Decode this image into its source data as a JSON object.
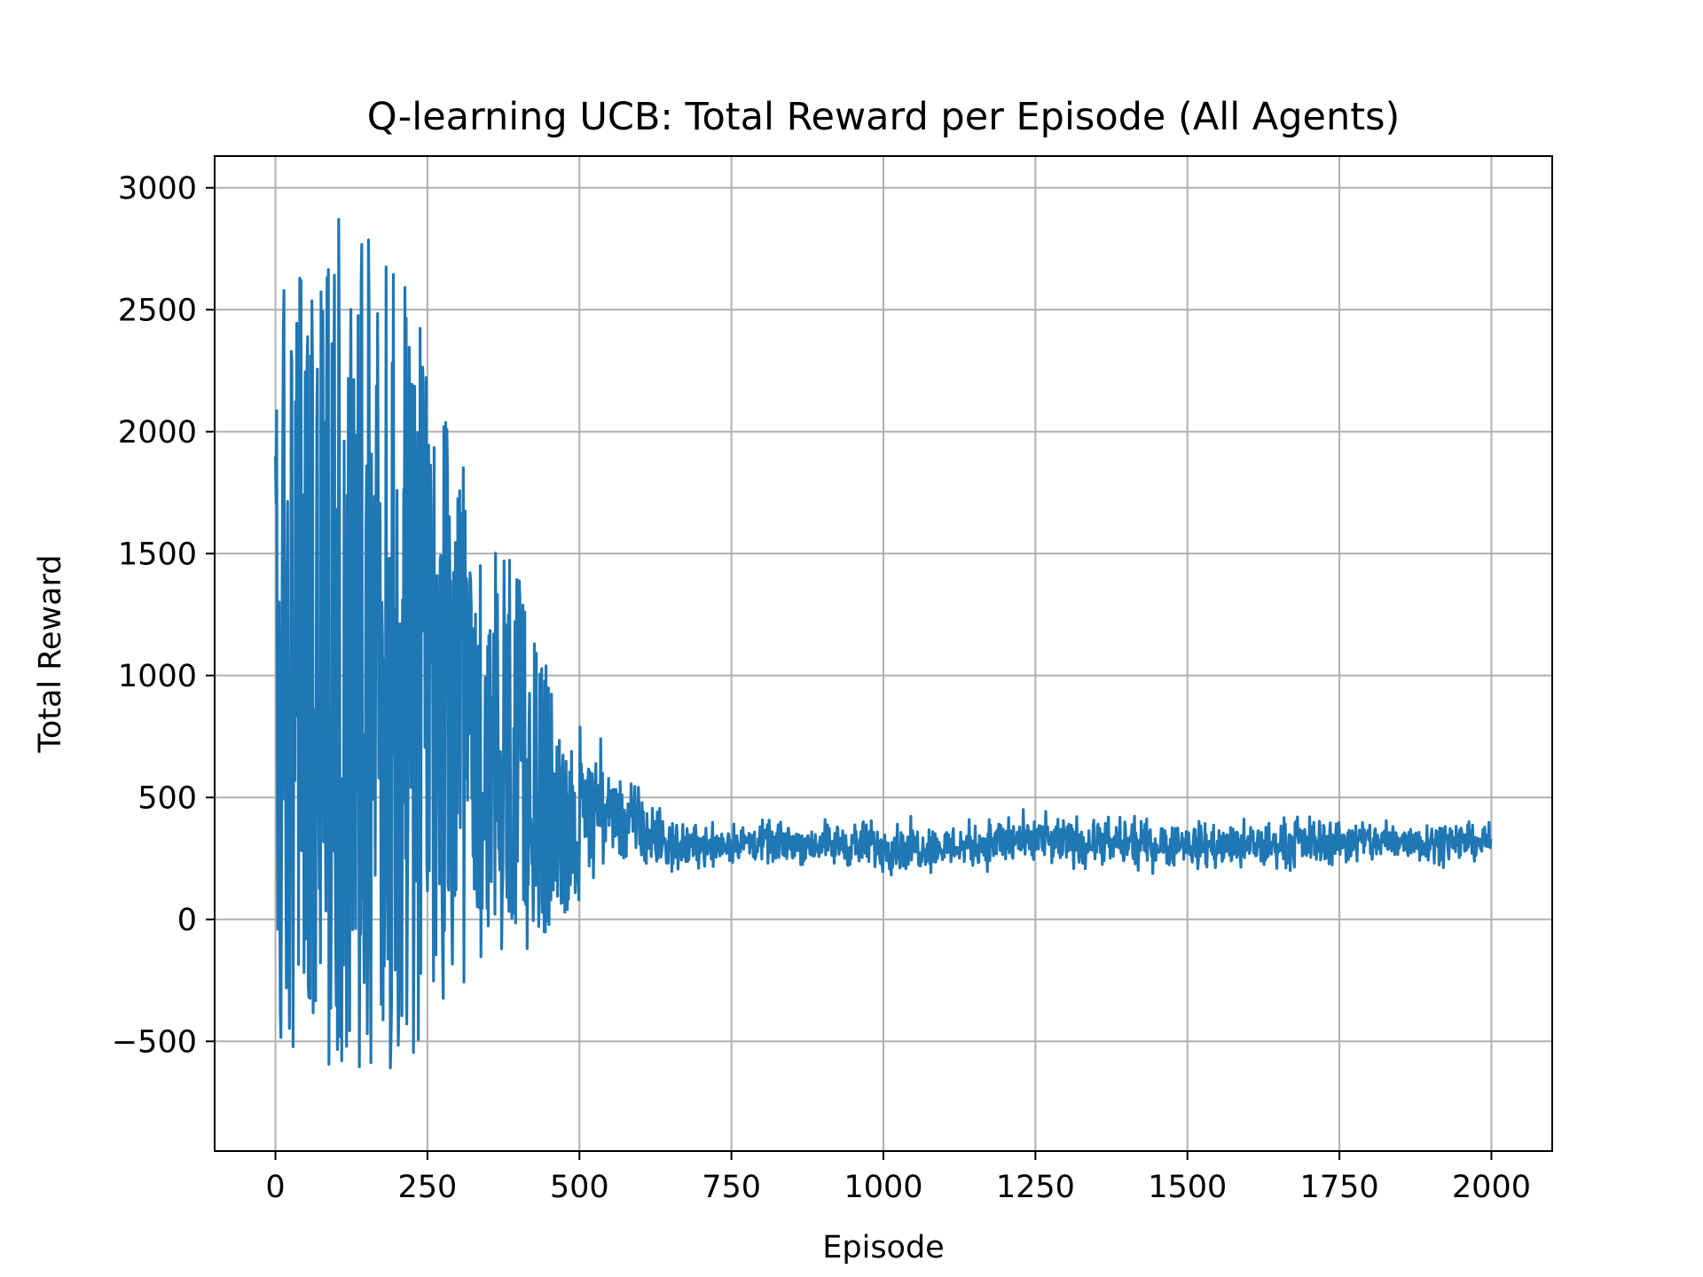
{
  "chart_data": {
    "type": "line",
    "title": "Q-learning UCB: Total Reward per Episode (All Agents)",
    "xlabel": "Episode",
    "ylabel": "Total Reward",
    "xlim": [
      -100,
      2100
    ],
    "ylim": [
      -950,
      3130
    ],
    "xticks": [
      0,
      250,
      500,
      750,
      1000,
      1250,
      1500,
      1750,
      2000
    ],
    "yticks": [
      -500,
      0,
      500,
      1000,
      1500,
      2000,
      2500,
      3000
    ],
    "xtick_labels": [
      "0",
      "250",
      "500",
      "750",
      "1000",
      "1250",
      "1500",
      "1750",
      "2000"
    ],
    "ytick_labels": [
      "−500",
      "0",
      "500",
      "1000",
      "1500",
      "2000",
      "2500",
      "3000"
    ],
    "grid": true,
    "line_color": "#1f77b4",
    "series": [
      {
        "episodes": 2000,
        "envelope_x": [
          0,
          25,
          50,
          75,
          100,
          125,
          150,
          175,
          200,
          225,
          250,
          275,
          300,
          325,
          350,
          375,
          400,
          425,
          450,
          475,
          500,
          525,
          550,
          575,
          600,
          650,
          700,
          800,
          900,
          1000,
          1100,
          1200,
          1300,
          1400,
          1500,
          1600,
          1700,
          1800,
          1900,
          2000
        ],
        "envelope_upper": [
          2600,
          2650,
          2700,
          2750,
          2950,
          2750,
          2800,
          2850,
          2600,
          2800,
          2300,
          2100,
          2000,
          1600,
          1500,
          1550,
          1500,
          1200,
          1000,
          700,
          850,
          850,
          700,
          680,
          600,
          450,
          430,
          430,
          430,
          450,
          420,
          470,
          460,
          450,
          440,
          440,
          460,
          450,
          440,
          420
        ],
        "envelope_lower": [
          -700,
          -650,
          -600,
          -600,
          -600,
          -600,
          -620,
          -650,
          -600,
          -550,
          -550,
          -450,
          -400,
          -350,
          -250,
          -200,
          -150,
          -100,
          -50,
          20,
          60,
          100,
          120,
          140,
          130,
          150,
          180,
          200,
          190,
          150,
          170,
          170,
          170,
          170,
          180,
          150,
          180,
          190,
          200,
          220
        ],
        "center": [
          950,
          1000,
          1050,
          1050,
          1100,
          1100,
          1100,
          1050,
          1000,
          950,
          900,
          820,
          750,
          650,
          600,
          560,
          520,
          470,
          430,
          380,
          360,
          340,
          320,
          310,
          300,
          300,
          300,
          300,
          300,
          300,
          290,
          300,
          300,
          300,
          300,
          290,
          310,
          300,
          300,
          310
        ]
      }
    ]
  }
}
